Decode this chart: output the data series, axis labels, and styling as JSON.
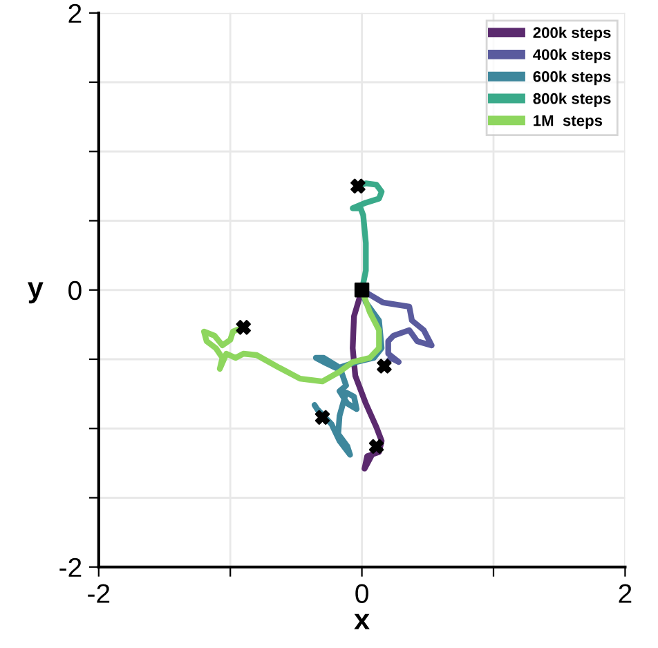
{
  "chart_data": {
    "type": "line",
    "xlabel": "x",
    "ylabel": "y",
    "xlim": [
      -2,
      2
    ],
    "ylim": [
      -2,
      2
    ],
    "xticks": [
      -2,
      {
        "value": -1,
        "label": null
      },
      0,
      {
        "value": 1,
        "label": null
      },
      2
    ],
    "yticks": [
      -2,
      {
        "value": -1.5,
        "label": null
      },
      {
        "value": -1,
        "label": null
      },
      {
        "value": -0.5,
        "label": null
      },
      0,
      {
        "value": 0.5,
        "label": null
      },
      {
        "value": 1,
        "label": null
      },
      {
        "value": 1.5,
        "label": null
      },
      2
    ],
    "grid": true,
    "legend": "top right",
    "series": [
      {
        "name": "200k steps",
        "color": "#5b2a6e",
        "x": [
          0,
          -0.06,
          -0.07,
          -0.05,
          0.03,
          0.11,
          0.15,
          0.13,
          0.04,
          0.02,
          0.06,
          0.11
        ],
        "values": [
          0,
          -0.19,
          -0.42,
          -0.62,
          -0.82,
          -0.99,
          -1.09,
          -1.17,
          -1.2,
          -1.29,
          -1.22,
          -1.13
        ]
      },
      {
        "name": "400k steps",
        "color": "#5a5b9e",
        "x": [
          0,
          0.16,
          0.36,
          0.38,
          0.47,
          0.53,
          0.42,
          0.36,
          0.24,
          0.2,
          0.2,
          0.28,
          0.22,
          0.17
        ],
        "values": [
          0,
          -0.09,
          -0.12,
          -0.22,
          -0.29,
          -0.4,
          -0.37,
          -0.29,
          -0.33,
          -0.37,
          -0.46,
          -0.52,
          -0.49,
          -0.55
        ]
      },
      {
        "name": "600k steps",
        "color": "#3e879c",
        "x": [
          0,
          0.03,
          0.13,
          0.15,
          0.09,
          -0.04,
          -0.17,
          -0.29,
          -0.35,
          -0.27,
          -0.16,
          -0.12,
          -0.17,
          -0.11,
          -0.04,
          -0.06,
          -0.12,
          -0.17,
          -0.18,
          -0.11,
          -0.09,
          -0.17,
          -0.23,
          -0.34,
          -0.36,
          -0.3
        ],
        "values": [
          0,
          -0.09,
          -0.22,
          -0.42,
          -0.49,
          -0.52,
          -0.56,
          -0.49,
          -0.49,
          -0.53,
          -0.58,
          -0.69,
          -0.73,
          -0.82,
          -0.86,
          -0.77,
          -0.74,
          -0.91,
          -1.04,
          -1.13,
          -1.19,
          -1.09,
          -0.97,
          -0.86,
          -0.83,
          -0.92
        ]
      },
      {
        "name": "800k steps",
        "color": "#3aaa8a",
        "x": [
          0,
          0.03,
          0.03,
          0.01,
          -0.01,
          -0.07,
          0.03,
          0.13,
          0.15,
          0.11,
          0.03,
          -0.03
        ],
        "values": [
          0,
          0.14,
          0.34,
          0.54,
          0.59,
          0.59,
          0.63,
          0.66,
          0.71,
          0.76,
          0.77,
          0.75
        ]
      },
      {
        "name": "1M  steps",
        "color": "#8ed65e",
        "x": [
          0,
          0.06,
          0.13,
          0.13,
          0.06,
          -0.07,
          -0.17,
          -0.3,
          -0.47,
          -0.63,
          -0.8,
          -0.9,
          -0.96,
          -1.03,
          -1.08,
          -1.06,
          -1.11,
          -1.18,
          -1.2,
          -1.12,
          -1.06,
          -1.0,
          -0.98,
          -0.9
        ],
        "values": [
          0,
          -0.16,
          -0.29,
          -0.42,
          -0.49,
          -0.52,
          -0.59,
          -0.66,
          -0.64,
          -0.56,
          -0.47,
          -0.46,
          -0.49,
          -0.46,
          -0.57,
          -0.49,
          -0.42,
          -0.37,
          -0.3,
          -0.33,
          -0.4,
          -0.36,
          -0.3,
          -0.27
        ]
      },
      {
        "type": "scatter",
        "marker": "square",
        "color": "#000000",
        "x": [
          0
        ],
        "values": [
          0
        ]
      },
      {
        "type": "scatter",
        "marker": "cross",
        "color": "#000000",
        "x": [
          0.11,
          0.17,
          -0.3,
          -0.03,
          -0.9
        ],
        "values": [
          -1.13,
          -0.55,
          -0.92,
          0.75,
          -0.27
        ]
      }
    ]
  }
}
